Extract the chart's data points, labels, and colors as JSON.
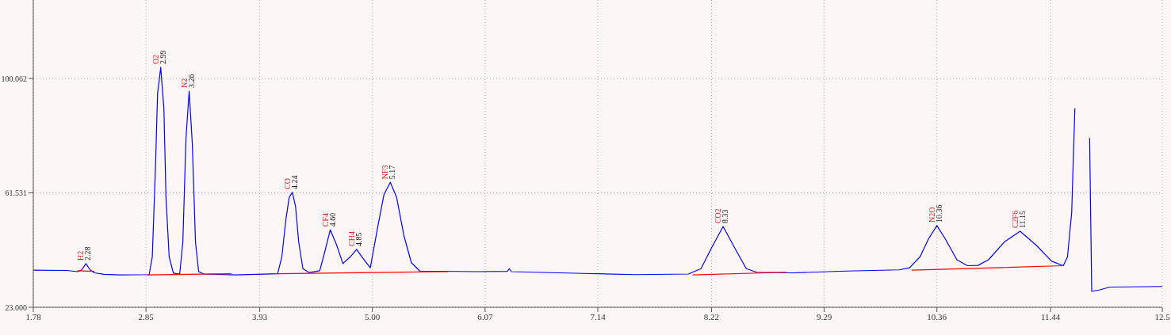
{
  "chart_data": {
    "type": "line",
    "xlim": [
      1.78,
      12.5
    ],
    "ylim": [
      23,
      126.5
    ],
    "xticks": [
      1.78,
      2.85,
      3.93,
      {
        "value": 5,
        "label": "5.00"
      },
      6.07,
      7.14,
      8.22,
      9.29,
      10.36,
      11.44,
      12.5
    ],
    "yticks": [
      {
        "value": 23,
        "label": "23.000"
      },
      61.531,
      100.062
    ],
    "grid": true,
    "legend": false,
    "marker": "none",
    "line_style": "solid",
    "series": [
      {
        "color": "#0000ff",
        "x": [
          1.78,
          2.1,
          2.2,
          2.24,
          2.28,
          2.32,
          2.36,
          2.45,
          2.6,
          2.88,
          2.91,
          2.94,
          2.96,
          2.99,
          3.02,
          3.04,
          3.07,
          3.11,
          3.17,
          3.2,
          3.23,
          3.26,
          3.29,
          3.32,
          3.35,
          3.4,
          3.7,
          4.1,
          4.14,
          4.18,
          4.21,
          4.24,
          4.27,
          4.3,
          4.34,
          4.4,
          4.5,
          4.55,
          4.6,
          4.66,
          4.72,
          4.79,
          4.85,
          4.91,
          4.98,
          5.05,
          5.11,
          5.17,
          5.23,
          5.3,
          5.37,
          5.45,
          6.0,
          6.28,
          6.3,
          6.32,
          7.0,
          7.5,
          8.0,
          8.12,
          8.22,
          8.33,
          8.44,
          8.55,
          8.65,
          9.0,
          9.5,
          10.0,
          10.1,
          10.2,
          10.28,
          10.36,
          10.44,
          10.55,
          10.65,
          10.75,
          10.85,
          11.0,
          11.15,
          11.3,
          11.45,
          11.56,
          11.6,
          11.64,
          11.67,
          11.7,
          11.8,
          11.81,
          11.83,
          11.9,
          12.0,
          12.5
        ],
        "values": [
          35.5,
          35.4,
          35,
          35.6,
          37.7,
          35.6,
          34.6,
          34.1,
          33.9,
          34,
          40,
          70,
          95,
          103.8,
          90,
          60,
          40,
          34.5,
          34.2,
          45,
          80,
          95.8,
          78,
          45,
          35,
          34.2,
          33.9,
          34.3,
          40,
          53,
          60,
          61.7,
          57,
          45,
          36,
          34.7,
          35.3,
          42,
          49.1,
          44,
          37.7,
          40,
          42.5,
          39.5,
          36.3,
          50,
          61,
          65.1,
          60,
          47,
          38,
          35.2,
          35,
          35.1,
          36,
          35,
          34.4,
          34,
          34.2,
          36,
          43,
          50.2,
          43,
          36,
          34.8,
          34.6,
          35.2,
          35.6,
          36.3,
          40,
          46,
          50.5,
          46,
          39,
          37,
          37.1,
          39,
          45,
          48.6,
          44,
          38.5,
          37,
          40,
          55,
          90,
          null,
          null,
          80,
          28.4,
          28.8,
          29.8,
          30
        ]
      },
      {
        "color": "#ff0000",
        "x": [
          2.2,
          2.36,
          2.37,
          2.86,
          3.66,
          3.67,
          4.1,
          5.72,
          5.73,
          8.04,
          8.93,
          8.94,
          10.12,
          11.56
        ],
        "values": [
          35.3,
          35.1,
          null,
          33.9,
          34.3,
          null,
          34.3,
          35,
          null,
          33.9,
          34.8,
          null,
          35.5,
          37
        ]
      }
    ],
    "annotations": [
      {
        "text": "H2",
        "x": 2.28,
        "y": 37.7
      },
      {
        "text": "2.28",
        "x": 2.28,
        "y": 37.7
      },
      {
        "text": "O2",
        "x": 2.99,
        "y": 103.8
      },
      {
        "text": "2.99",
        "x": 2.99,
        "y": 103.8
      },
      {
        "text": "N2",
        "x": 3.26,
        "y": 95.8
      },
      {
        "text": "3.26",
        "x": 3.26,
        "y": 95.8
      },
      {
        "text": "CO",
        "x": 4.24,
        "y": 61.7
      },
      {
        "text": "4.24",
        "x": 4.24,
        "y": 61.7
      },
      {
        "text": "CF4",
        "x": 4.6,
        "y": 49.1
      },
      {
        "text": "4.60",
        "x": 4.6,
        "y": 49.1
      },
      {
        "text": "CH4",
        "x": 4.85,
        "y": 42.5
      },
      {
        "text": "4.85",
        "x": 4.85,
        "y": 42.5
      },
      {
        "text": "NF3",
        "x": 5.17,
        "y": 65.1
      },
      {
        "text": "5.17",
        "x": 5.17,
        "y": 65.1
      },
      {
        "text": "CO2",
        "x": 8.33,
        "y": 50.2
      },
      {
        "text": "8.33",
        "x": 8.33,
        "y": 50.2
      },
      {
        "text": "N2O",
        "x": 10.36,
        "y": 50.5
      },
      {
        "text": "10.36",
        "x": 10.36,
        "y": 50.5
      },
      {
        "text": "C2F6",
        "x": 11.15,
        "y": 48.6
      },
      {
        "text": "11.15",
        "x": 11.15,
        "y": 48.6
      }
    ]
  }
}
